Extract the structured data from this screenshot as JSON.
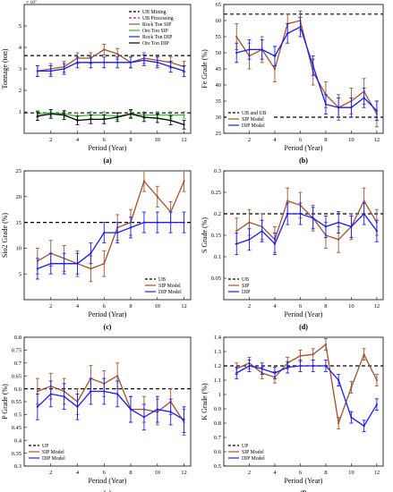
{
  "page": {
    "width": 439,
    "height": 550
  },
  "chart_data": [
    {
      "id": "a",
      "type": "line",
      "panel_label": "(a)",
      "title": "",
      "xlabel": "Period (Year)",
      "ylabel": "Tonnage (ton)",
      "exponent": "× 10⁷",
      "xlim": [
        0,
        12.5
      ],
      "ylim": [
        0,
        6
      ],
      "xticks": [
        2,
        4,
        6,
        8,
        10,
        12
      ],
      "yticks": [
        1,
        2,
        3,
        4,
        5
      ],
      "hlines": [
        {
          "name": "UB Mining",
          "y": 3.62,
          "color": "#000000",
          "dash": "4,3"
        },
        {
          "name": "UB Processing",
          "y": 0.95,
          "color": "#000000",
          "dash": "4,3"
        }
      ],
      "legend": {
        "position": "top-right",
        "items": [
          {
            "name": "UB Mining",
            "kind": "dash",
            "color": "#000000"
          },
          {
            "name": "UB Processing",
            "kind": "dash",
            "color": "#e0007a"
          },
          {
            "name": "Rock Ton SIP",
            "kind": "line",
            "color": "#a0522d"
          },
          {
            "name": "Ore Ton SIP",
            "kind": "line",
            "color": "#3cb43c"
          },
          {
            "name": "Rock Ton DIP",
            "kind": "line",
            "color": "#1a1aff"
          },
          {
            "name": "Ore Ton DIP",
            "kind": "line",
            "color": "#000000"
          }
        ]
      },
      "series": [
        {
          "name": "Rock Ton SIP",
          "color": "#a0522d",
          "x": [
            1,
            2,
            3,
            4,
            5,
            6,
            7,
            8,
            9,
            10,
            11,
            12
          ],
          "y": [
            2.9,
            3.0,
            3.1,
            3.5,
            3.5,
            3.9,
            3.7,
            3.3,
            3.5,
            3.4,
            3.3,
            3.1
          ],
          "err": [
            0.25,
            0.25,
            0.25,
            0.25,
            0.25,
            0.25,
            0.25,
            0.25,
            0.25,
            0.25,
            0.25,
            0.25
          ]
        },
        {
          "name": "Rock Ton DIP",
          "color": "#1a1aff",
          "x": [
            1,
            2,
            3,
            4,
            5,
            6,
            7,
            8,
            9,
            10,
            11,
            12
          ],
          "y": [
            2.9,
            2.9,
            3.0,
            3.3,
            3.3,
            3.3,
            3.3,
            3.3,
            3.4,
            3.3,
            3.1,
            2.9
          ],
          "err": [
            0.25,
            0.25,
            0.25,
            0.25,
            0.25,
            0.25,
            0.25,
            0.25,
            0.25,
            0.25,
            0.25,
            0.25
          ]
        },
        {
          "name": "Ore Ton SIP",
          "color": "#3cb43c",
          "x": [
            1,
            2,
            3,
            4,
            5,
            6,
            7,
            8,
            9,
            10,
            11,
            12
          ],
          "y": [
            0.9,
            0.95,
            0.9,
            0.8,
            0.85,
            0.85,
            0.8,
            0.9,
            0.85,
            0.85,
            0.85,
            0.85
          ],
          "err": [
            0.15,
            0.15,
            0.15,
            0.15,
            0.15,
            0.15,
            0.15,
            0.15,
            0.15,
            0.15,
            0.15,
            0.15
          ]
        },
        {
          "name": "Ore Ton DIP",
          "color": "#000000",
          "x": [
            1,
            2,
            3,
            4,
            5,
            6,
            7,
            8,
            9,
            10,
            11,
            12
          ],
          "y": [
            0.8,
            0.9,
            0.85,
            0.6,
            0.65,
            0.65,
            0.75,
            0.9,
            0.75,
            0.7,
            0.6,
            0.4
          ],
          "err": [
            0.2,
            0.2,
            0.2,
            0.2,
            0.2,
            0.2,
            0.2,
            0.2,
            0.2,
            0.2,
            0.2,
            0.2
          ]
        }
      ]
    },
    {
      "id": "b",
      "type": "line",
      "panel_label": "(b)",
      "title": "",
      "xlabel": "Period (Year)",
      "ylabel": "Fe Grade (%)",
      "xlim": [
        0,
        12.5
      ],
      "ylim": [
        25,
        65
      ],
      "xticks": [
        2,
        4,
        6,
        8,
        10,
        12
      ],
      "yticks": [
        25,
        30,
        35,
        40,
        45,
        50,
        55,
        60,
        65
      ],
      "hlines": [
        {
          "name": "UB and UB",
          "y": 62,
          "color": "#000000",
          "dash": "4,3"
        },
        {
          "name": "",
          "y": 30,
          "color": "#000000",
          "dash": "4,3"
        }
      ],
      "legend": {
        "position": "bottom-left",
        "items": [
          {
            "name": "UB and UB",
            "kind": "dash",
            "color": "#000000"
          },
          {
            "name": "SIP Model",
            "kind": "line",
            "color": "#a0522d"
          },
          {
            "name": "DIP Model",
            "kind": "line",
            "color": "#1a1aff"
          }
        ]
      },
      "series": [
        {
          "name": "SIP Model",
          "color": "#a0522d",
          "x": [
            1,
            2,
            3,
            4,
            5,
            6,
            7,
            8,
            9,
            10,
            11,
            12
          ],
          "y": [
            55,
            49,
            51,
            45,
            59,
            60,
            44,
            37,
            33,
            35,
            38,
            31
          ],
          "err": [
            4,
            4,
            4,
            4,
            3,
            3,
            4,
            4,
            4,
            4,
            4,
            4
          ]
        },
        {
          "name": "DIP Model",
          "color": "#1a1aff",
          "x": [
            1,
            2,
            3,
            4,
            5,
            6,
            7,
            8,
            9,
            10,
            11,
            12
          ],
          "y": [
            50,
            51,
            51,
            49,
            56,
            58,
            46,
            34,
            33,
            33,
            36,
            32
          ],
          "err": [
            3,
            3,
            3,
            3,
            3,
            3,
            3,
            3,
            3,
            3,
            3,
            3
          ]
        }
      ]
    },
    {
      "id": "c",
      "type": "line",
      "panel_label": "(c)",
      "title": "",
      "xlabel": "Period (Year)",
      "ylabel": "Sio2 Grade (%)",
      "xlim": [
        0,
        12.5
      ],
      "ylim": [
        0,
        25
      ],
      "xticks": [
        2,
        4,
        6,
        8,
        10,
        12
      ],
      "yticks": [
        5,
        10,
        15,
        20,
        25
      ],
      "hlines": [
        {
          "name": "UB",
          "y": 15,
          "color": "#000000",
          "dash": "4,3"
        }
      ],
      "legend": {
        "position": "bottom-right",
        "items": [
          {
            "name": "UB",
            "kind": "dash",
            "color": "#000000"
          },
          {
            "name": "SIP Model",
            "kind": "line",
            "color": "#a0522d"
          },
          {
            "name": "DIP Model",
            "kind": "line",
            "color": "#1a1aff"
          }
        ]
      },
      "series": [
        {
          "name": "SIP Model",
          "color": "#a0522d",
          "x": [
            1,
            2,
            3,
            4,
            5,
            6,
            7,
            8,
            9,
            10,
            11,
            12
          ],
          "y": [
            7.5,
            9,
            8,
            7,
            6,
            7,
            14,
            15,
            23,
            20,
            17,
            23
          ],
          "err": [
            2.5,
            2.5,
            2.5,
            2.5,
            2.5,
            2.5,
            2.5,
            2.5,
            2,
            2,
            2,
            2
          ]
        },
        {
          "name": "DIP Model",
          "color": "#1a1aff",
          "x": [
            1,
            2,
            3,
            4,
            5,
            6,
            7,
            8,
            9,
            10,
            11,
            12
          ],
          "y": [
            6,
            7,
            7,
            7,
            9,
            13,
            13,
            14,
            15,
            15,
            15,
            15
          ],
          "err": [
            2,
            2,
            2,
            2,
            2,
            2,
            2,
            2,
            2,
            2,
            2,
            2
          ]
        }
      ]
    },
    {
      "id": "d",
      "type": "line",
      "panel_label": "(d)",
      "title": "",
      "xlabel": "Period (Year)",
      "ylabel": "S Grade (%)",
      "xlim": [
        0,
        12.5
      ],
      "ylim": [
        0,
        0.3
      ],
      "xticks": [
        2,
        4,
        6,
        8,
        10,
        12
      ],
      "yticks": [
        0.05,
        0.1,
        0.15,
        0.2,
        0.25,
        0.3
      ],
      "hlines": [
        {
          "name": "UB",
          "y": 0.2,
          "color": "#000000",
          "dash": "4,3"
        }
      ],
      "legend": {
        "position": "bottom-left",
        "items": [
          {
            "name": "UB",
            "kind": "dash",
            "color": "#000000"
          },
          {
            "name": "SIP",
            "kind": "line",
            "color": "#a0522d"
          },
          {
            "name": "DIP",
            "kind": "line",
            "color": "#1a1aff"
          }
        ]
      },
      "series": [
        {
          "name": "SIP",
          "color": "#a0522d",
          "x": [
            1,
            2,
            3,
            4,
            5,
            6,
            7,
            8,
            9,
            10,
            11,
            12
          ],
          "y": [
            0.16,
            0.18,
            0.17,
            0.14,
            0.23,
            0.22,
            0.19,
            0.15,
            0.14,
            0.17,
            0.23,
            0.18
          ],
          "err": [
            0.03,
            0.03,
            0.03,
            0.03,
            0.03,
            0.03,
            0.03,
            0.03,
            0.03,
            0.03,
            0.03,
            0.03
          ]
        },
        {
          "name": "DIP",
          "color": "#1a1aff",
          "x": [
            1,
            2,
            3,
            4,
            5,
            6,
            7,
            8,
            9,
            10,
            11,
            12
          ],
          "y": [
            0.13,
            0.14,
            0.16,
            0.13,
            0.2,
            0.2,
            0.19,
            0.17,
            0.18,
            0.17,
            0.2,
            0.16
          ],
          "err": [
            0.025,
            0.025,
            0.025,
            0.025,
            0.025,
            0.025,
            0.025,
            0.025,
            0.025,
            0.025,
            0.025,
            0.025
          ]
        }
      ]
    },
    {
      "id": "e",
      "type": "line",
      "panel_label": "(e)",
      "title": "",
      "xlabel": "Period (Year)",
      "ylabel": "P Grade (%)",
      "xlim": [
        0,
        12.5
      ],
      "ylim": [
        0.3,
        0.8
      ],
      "xticks": [
        2,
        4,
        6,
        8,
        10,
        12
      ],
      "yticks": [
        0.3,
        0.35,
        0.4,
        0.45,
        0.5,
        0.55,
        0.6,
        0.65,
        0.7,
        0.75,
        0.8
      ],
      "hlines": [
        {
          "name": "UP",
          "y": 0.6,
          "color": "#000000",
          "dash": "4,3"
        }
      ],
      "legend": {
        "position": "bottom-left",
        "items": [
          {
            "name": "UP",
            "kind": "dash",
            "color": "#000000"
          },
          {
            "name": "SIP Model",
            "kind": "line",
            "color": "#a0522d"
          },
          {
            "name": "DIP Model",
            "kind": "line",
            "color": "#1a1aff"
          }
        ]
      },
      "series": [
        {
          "name": "SIP Model",
          "color": "#a0522d",
          "x": [
            1,
            2,
            3,
            4,
            5,
            6,
            7,
            8,
            9,
            10,
            11,
            12
          ],
          "y": [
            0.59,
            0.61,
            0.59,
            0.55,
            0.64,
            0.62,
            0.65,
            0.52,
            0.52,
            0.51,
            0.55,
            0.47
          ],
          "err": [
            0.05,
            0.05,
            0.05,
            0.05,
            0.05,
            0.05,
            0.05,
            0.05,
            0.05,
            0.05,
            0.05,
            0.05
          ]
        },
        {
          "name": "DIP Model",
          "color": "#1a1aff",
          "x": [
            1,
            2,
            3,
            4,
            5,
            6,
            7,
            8,
            9,
            10,
            11,
            12
          ],
          "y": [
            0.53,
            0.58,
            0.57,
            0.53,
            0.59,
            0.59,
            0.58,
            0.52,
            0.49,
            0.52,
            0.51,
            0.48
          ],
          "err": [
            0.05,
            0.05,
            0.05,
            0.05,
            0.05,
            0.05,
            0.05,
            0.05,
            0.05,
            0.05,
            0.05,
            0.05
          ]
        }
      ]
    },
    {
      "id": "f",
      "type": "line",
      "panel_label": "(f)",
      "title": "",
      "xlabel": "Period (Year)",
      "ylabel": "K Grade (%)",
      "xlim": [
        0,
        12.5
      ],
      "ylim": [
        0.5,
        1.4
      ],
      "xticks": [
        2,
        4,
        6,
        8,
        10,
        12
      ],
      "yticks": [
        0.5,
        0.6,
        0.7,
        0.8,
        0.9,
        1.0,
        1.1,
        1.2,
        1.3,
        1.4
      ],
      "ytick_labels": [
        "0.5",
        "0.6",
        "0.7",
        "0.8",
        "0.9",
        "1",
        "1.1",
        "1.2",
        "1.3",
        "1.4"
      ],
      "hlines": [
        {
          "name": "UP",
          "y": 1.2,
          "color": "#000000",
          "dash": "4,3"
        }
      ],
      "legend": {
        "position": "bottom-left",
        "items": [
          {
            "name": "UP",
            "kind": "dash",
            "color": "#000000"
          },
          {
            "name": "SIP Model",
            "kind": "line",
            "color": "#a0522d"
          },
          {
            "name": "DIP Model",
            "kind": "line",
            "color": "#1a1aff"
          }
        ]
      },
      "series": [
        {
          "name": "SIP Model",
          "color": "#a0522d",
          "x": [
            1,
            2,
            3,
            4,
            5,
            6,
            7,
            8,
            9,
            10,
            11,
            12
          ],
          "y": [
            1.18,
            1.22,
            1.15,
            1.12,
            1.22,
            1.27,
            1.28,
            1.35,
            0.8,
            1.05,
            1.28,
            1.1
          ],
          "err": [
            0.04,
            0.04,
            0.04,
            0.04,
            0.04,
            0.04,
            0.04,
            0.04,
            0.04,
            0.04,
            0.04,
            0.04
          ]
        },
        {
          "name": "DIP Model",
          "color": "#1a1aff",
          "x": [
            1,
            2,
            3,
            4,
            5,
            6,
            7,
            8,
            9,
            10,
            11,
            12
          ],
          "y": [
            1.15,
            1.2,
            1.18,
            1.15,
            1.19,
            1.2,
            1.2,
            1.2,
            1.1,
            0.84,
            0.78,
            0.93
          ],
          "err": [
            0.04,
            0.04,
            0.04,
            0.04,
            0.04,
            0.04,
            0.04,
            0.04,
            0.04,
            0.04,
            0.04,
            0.04
          ]
        }
      ]
    }
  ]
}
